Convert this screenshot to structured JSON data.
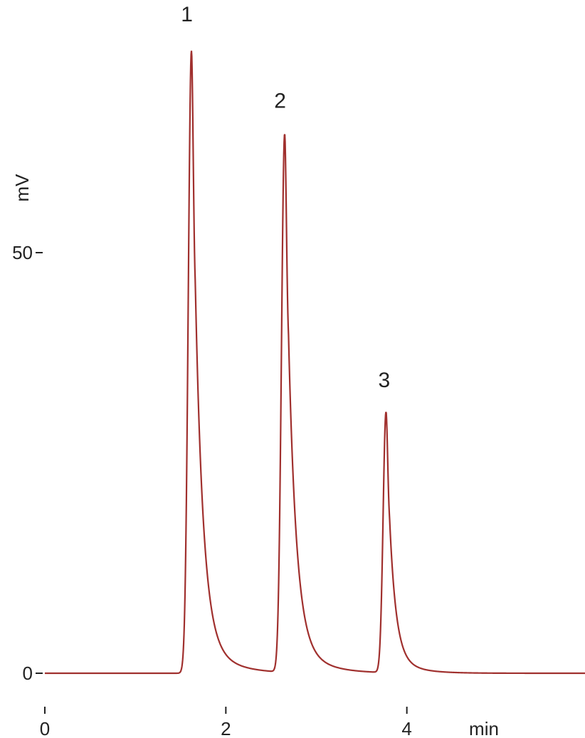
{
  "chart_data": {
    "type": "line",
    "title": "",
    "xlabel": "min",
    "ylabel": "mV",
    "xlim": [
      0,
      6
    ],
    "ylim": [
      0,
      80
    ],
    "grid": false,
    "legend": "none",
    "x_ticks": [
      {
        "value": 0,
        "label": "0"
      },
      {
        "value": 2,
        "label": "2"
      },
      {
        "value": 4,
        "label": "4"
      }
    ],
    "y_ticks": [
      {
        "value": 0,
        "label": "0"
      },
      {
        "value": 50,
        "label": "50"
      }
    ],
    "series": [
      {
        "color": "#a0302e",
        "baseline": 0.0,
        "peaks": [
          {
            "label": "1",
            "rt": 1.62,
            "height": 74.0,
            "sigma_left": 0.035,
            "tau": 0.085
          },
          {
            "label": "2",
            "rt": 2.65,
            "height": 64.0,
            "sigma_left": 0.035,
            "tau": 0.085
          },
          {
            "label": "3",
            "rt": 3.77,
            "height": 31.0,
            "sigma_left": 0.032,
            "tau": 0.07
          }
        ]
      }
    ],
    "annotations": [
      {
        "text": "1",
        "x": 1.57,
        "y": 77.5
      },
      {
        "text": "2",
        "x": 2.6,
        "y": 67.2
      },
      {
        "text": "3",
        "x": 3.75,
        "y": 34.0
      }
    ]
  }
}
